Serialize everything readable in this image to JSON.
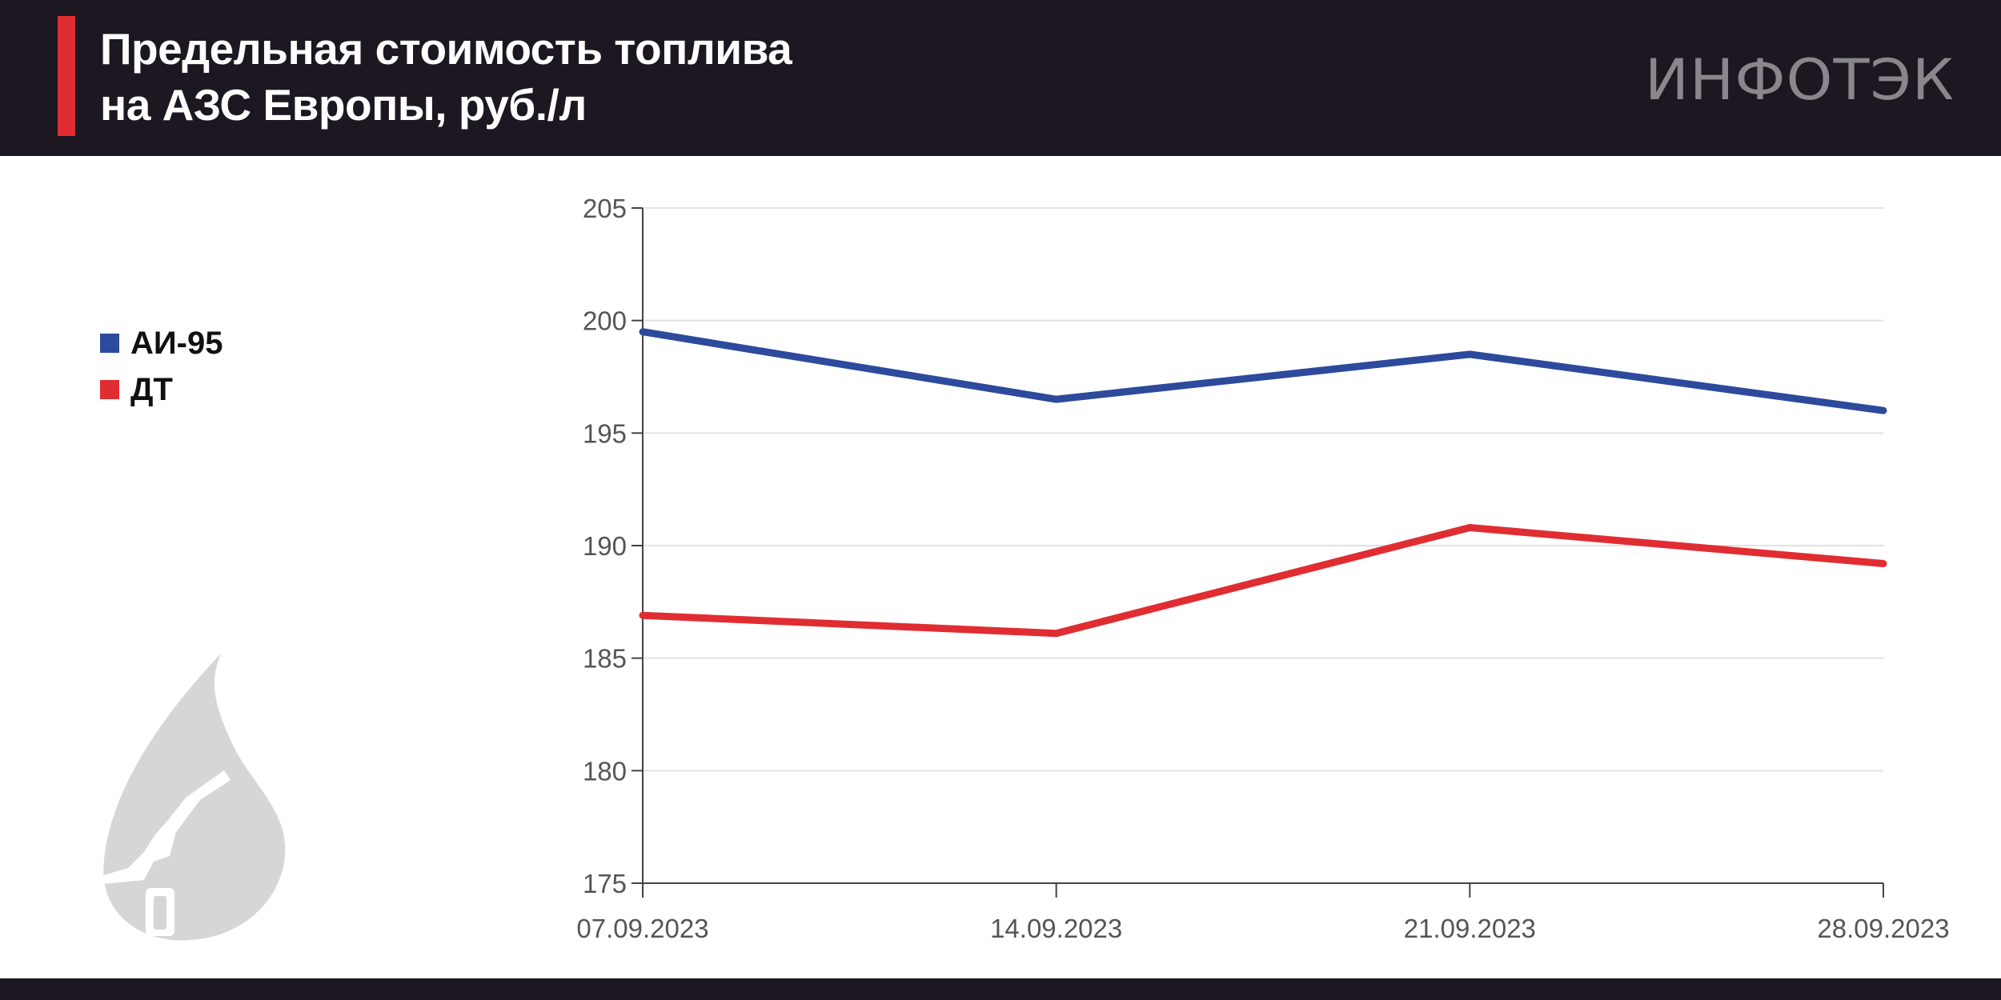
{
  "header": {
    "title_line1": "Предельная стоимость топлива",
    "title_line2": "на АЗС Европы, руб./л",
    "brand": "ИНФОТЭК"
  },
  "colors": {
    "header_bg": "#1c1720",
    "accent": "#e02d32",
    "series_ai95": "#2d4a9c",
    "series_dt": "#e02d32",
    "grid": "#e2e2e2",
    "axis": "#444444"
  },
  "icons": {
    "logo_art": "fuel-drop-nozzle-icon"
  },
  "chart_data": {
    "type": "line",
    "x": [
      "07.09.2023",
      "14.09.2023",
      "21.09.2023",
      "28.09.2023"
    ],
    "ylim": [
      175,
      205
    ],
    "yticks": [
      175,
      180,
      185,
      190,
      195,
      200,
      205
    ],
    "grid": true,
    "legend_position": "left",
    "series": [
      {
        "name": "АИ-95",
        "color": "#2d4a9c",
        "values": [
          199.5,
          196.5,
          198.5,
          196.0
        ]
      },
      {
        "name": "ДТ",
        "color": "#e02d32",
        "values": [
          186.9,
          186.1,
          190.8,
          189.2
        ]
      }
    ]
  }
}
